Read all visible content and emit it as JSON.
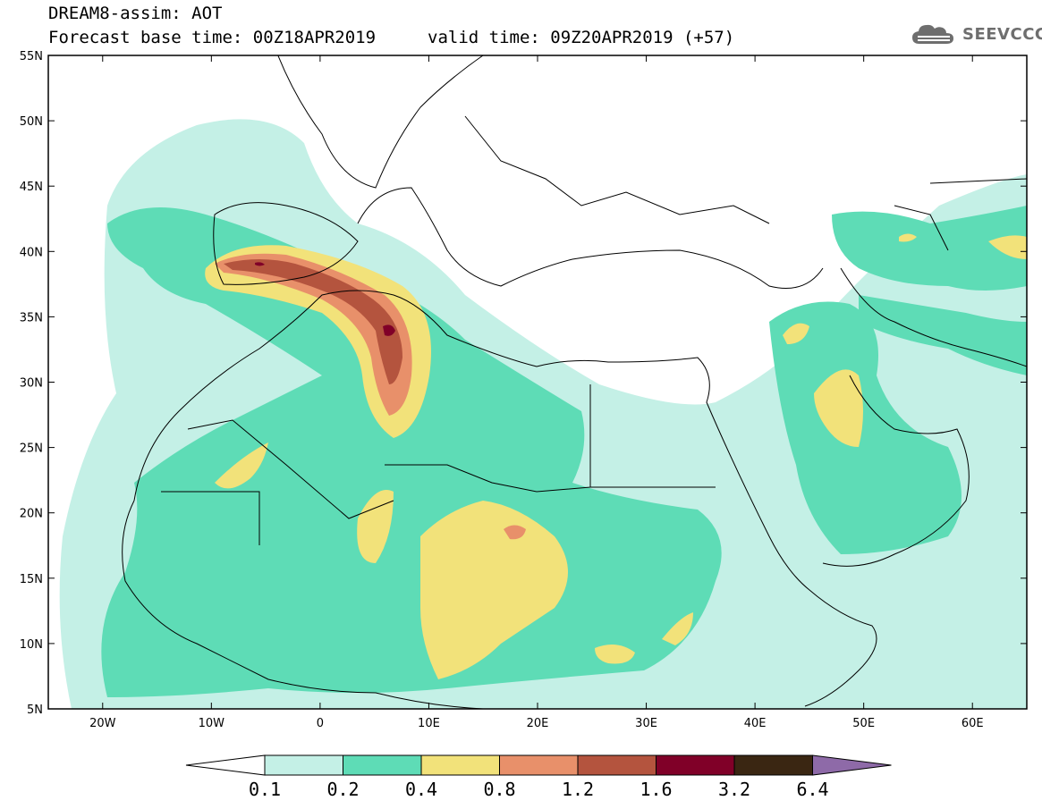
{
  "header": {
    "line1": "DREAM8-assim: AOT",
    "line2": "Forecast base time: 00Z18APR2019",
    "valid": "valid time: 09Z20APR2019 (+57)"
  },
  "logo": {
    "text": "SEEVCCC",
    "icon": "cloud-icon"
  },
  "map": {
    "lon_range": [
      -25,
      65
    ],
    "lat_range": [
      5,
      55
    ],
    "lat_ticks": [
      "55N",
      "50N",
      "45N",
      "40N",
      "35N",
      "30N",
      "25N",
      "20N",
      "15N",
      "10N",
      "5N"
    ],
    "lon_ticks": [
      "20W",
      "10W",
      "0",
      "10E",
      "20E",
      "30E",
      "40E",
      "50E",
      "60E"
    ]
  },
  "colorbar": {
    "labels": [
      "0.1",
      "0.2",
      "0.4",
      "0.8",
      "1.2",
      "1.6",
      "3.2",
      "6.4"
    ],
    "colors": [
      "#c4f0e6",
      "#5edcb6",
      "#f2e27a",
      "#e8906a",
      "#b4543e",
      "#800028",
      "#3a2612",
      "#8e6aa8"
    ]
  }
}
